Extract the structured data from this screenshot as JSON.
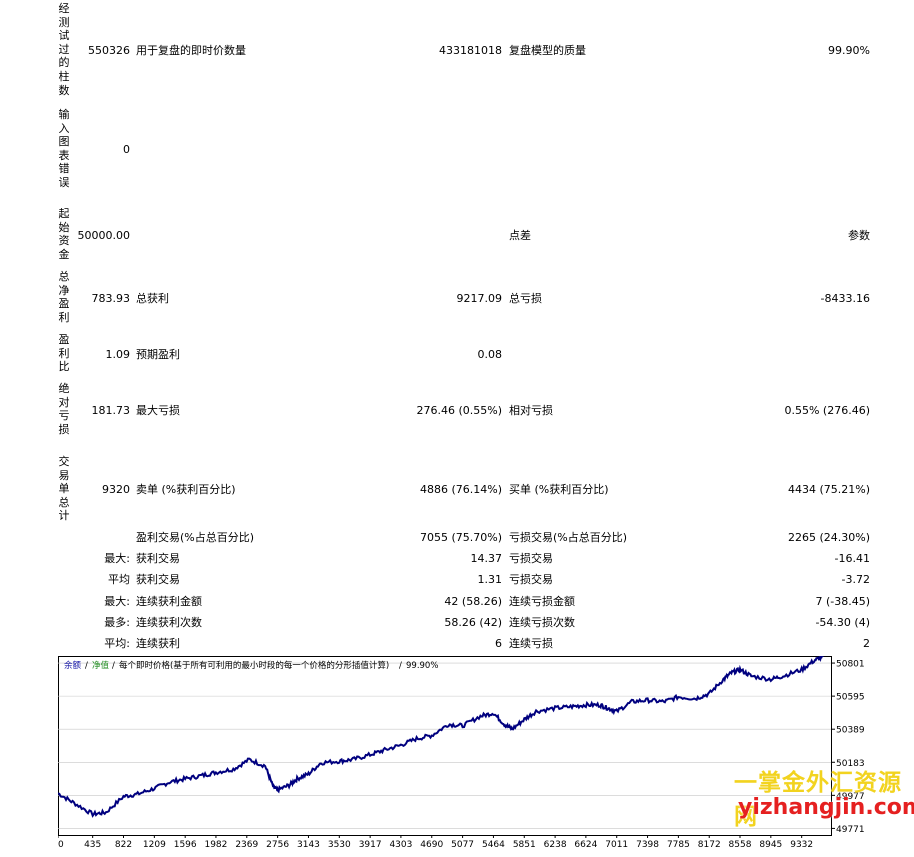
{
  "vertical_labels": {
    "bars": "经测试过的柱数",
    "errors": "输入图表错误",
    "deposit": "起始资金",
    "net_profit": "总净盈利",
    "profit_factor": "盈利比",
    "abs_drawdown": "绝对亏损",
    "total_trades": "交易单总计"
  },
  "rows": {
    "r1": {
      "v1": "550326",
      "l2": "用于复盘的即时价数量",
      "v2": "433181018",
      "l3": "复盘模型的质量",
      "v3": "99.90%"
    },
    "r2": {
      "v1": "0"
    },
    "r3": {
      "v1": "50000.00",
      "l3": "点差",
      "v3": "参数"
    },
    "r4": {
      "v1": "783.93",
      "l2": "总获利",
      "v2": "9217.09",
      "l3": "总亏损",
      "v3": "-8433.16"
    },
    "r5": {
      "v1": "1.09",
      "l2": "预期盈利",
      "v2": "0.08"
    },
    "r6": {
      "v1": "181.73",
      "l2": "最大亏损",
      "v2": "276.46 (0.55%)",
      "l3": "相对亏损",
      "v3": "0.55% (276.46)"
    },
    "r7": {
      "v1": "9320",
      "l2": "卖单 (%获利百分比)",
      "v2": "4886 (76.14%)",
      "l3": "买单 (%获利百分比)",
      "v3": "4434 (75.21%)"
    },
    "r8": {
      "l2": "盈利交易(%占总百分比)",
      "v2": "7055 (75.70%)",
      "l3": "亏损交易(%占总百分比)",
      "v3": "2265 (24.30%)"
    },
    "r9": {
      "l1": "最大:",
      "l2": "获利交易",
      "v2": "14.37",
      "l3": "亏损交易",
      "v3": "-16.41"
    },
    "r10": {
      "l1": "平均",
      "l2": "获利交易",
      "v2": "1.31",
      "l3": "亏损交易",
      "v3": "-3.72"
    },
    "r11": {
      "l1": "最大:",
      "l2": "连续获利金额",
      "v2": "42 (58.26)",
      "l3": "连续亏损金额",
      "v3": "7 (-38.45)"
    },
    "r12": {
      "l1": "最多:",
      "l2": "连续获利次数",
      "v2": "58.26 (42)",
      "l3": "连续亏损次数",
      "v3": "-54.30 (4)"
    },
    "r13": {
      "l1": "平均:",
      "l2": "连续获利",
      "v2": "6",
      "l3": "连续亏损",
      "v3": "2"
    }
  },
  "chart_legend": {
    "balance": "余额",
    "sep1": "/",
    "equity": "净值",
    "sep2": "/",
    "desc": "每个即时价格(基于所有可利用的最小时段的每一个价格的分形插值计算)",
    "sep3": "/",
    "quality": "99.90%"
  },
  "watermark": {
    "line1": "一掌金外汇资源网",
    "line2": "yizhangjin.com"
  },
  "colors": {
    "balance_line": "#00007f",
    "equity_line": "#1e8a1e",
    "grid": "#c8c8c8"
  },
  "chart_data": {
    "type": "line",
    "x_ticks": [
      0,
      435,
      822,
      1209,
      1596,
      1982,
      2369,
      2756,
      3143,
      3530,
      3917,
      4303,
      4690,
      5077,
      5464,
      5851,
      6238,
      6624,
      7011,
      7398,
      7785,
      8172,
      8558,
      8945,
      9332
    ],
    "y_ticks": [
      50801,
      50595,
      50389,
      50183,
      49977,
      49771
    ],
    "xlim": [
      0,
      9700
    ],
    "ylim": [
      49730,
      50845
    ],
    "series": [
      {
        "values": [
          [
            0,
            49990
          ],
          [
            200,
            49930
          ],
          [
            435,
            49860
          ],
          [
            600,
            49870
          ],
          [
            822,
            49970
          ],
          [
            1000,
            49985
          ],
          [
            1209,
            50020
          ],
          [
            1400,
            50060
          ],
          [
            1596,
            50080
          ],
          [
            1800,
            50100
          ],
          [
            1982,
            50120
          ],
          [
            2200,
            50140
          ],
          [
            2400,
            50200
          ],
          [
            2600,
            50160
          ],
          [
            2700,
            50030
          ],
          [
            2756,
            50010
          ],
          [
            2900,
            50040
          ],
          [
            3000,
            50080
          ],
          [
            3143,
            50110
          ],
          [
            3300,
            50180
          ],
          [
            3530,
            50190
          ],
          [
            3700,
            50200
          ],
          [
            3917,
            50230
          ],
          [
            4100,
            50260
          ],
          [
            4303,
            50290
          ],
          [
            4500,
            50330
          ],
          [
            4690,
            50350
          ],
          [
            4900,
            50420
          ],
          [
            5077,
            50410
          ],
          [
            5300,
            50470
          ],
          [
            5464,
            50490
          ],
          [
            5600,
            50420
          ],
          [
            5700,
            50390
          ],
          [
            5851,
            50450
          ],
          [
            6000,
            50500
          ],
          [
            6238,
            50520
          ],
          [
            6450,
            50530
          ],
          [
            6624,
            50540
          ],
          [
            6800,
            50540
          ],
          [
            6900,
            50520
          ],
          [
            7011,
            50500
          ],
          [
            7200,
            50560
          ],
          [
            7398,
            50570
          ],
          [
            7600,
            50560
          ],
          [
            7785,
            50590
          ],
          [
            8000,
            50580
          ],
          [
            8172,
            50610
          ],
          [
            8350,
            50700
          ],
          [
            8450,
            50740
          ],
          [
            8558,
            50760
          ],
          [
            8700,
            50720
          ],
          [
            8945,
            50700
          ],
          [
            9100,
            50720
          ],
          [
            9332,
            50760
          ],
          [
            9500,
            50820
          ],
          [
            9600,
            50840
          ]
        ]
      }
    ]
  }
}
